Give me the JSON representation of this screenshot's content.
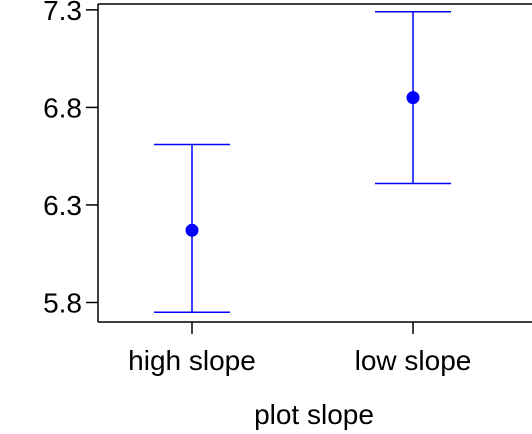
{
  "chart_data": {
    "type": "errorbar",
    "title": "",
    "xlabel": "plot slope",
    "ylabel": "",
    "categories": [
      "high slope",
      "low slope"
    ],
    "series": [
      {
        "points": [
          {
            "category": "high slope",
            "mean": 6.17,
            "lower": 5.75,
            "upper": 6.61
          },
          {
            "category": "low slope",
            "mean": 6.85,
            "lower": 6.41,
            "upper": 7.29
          }
        ]
      }
    ],
    "ylim": [
      5.7,
      7.33
    ],
    "yticks": [
      5.8,
      6.3,
      6.8,
      7.3
    ],
    "ytick_labels": [
      "5.8",
      "6.3",
      "6.8",
      "7.3"
    ],
    "grid": false,
    "colors": {
      "series": "#0000ff",
      "axis": "#000000"
    }
  }
}
